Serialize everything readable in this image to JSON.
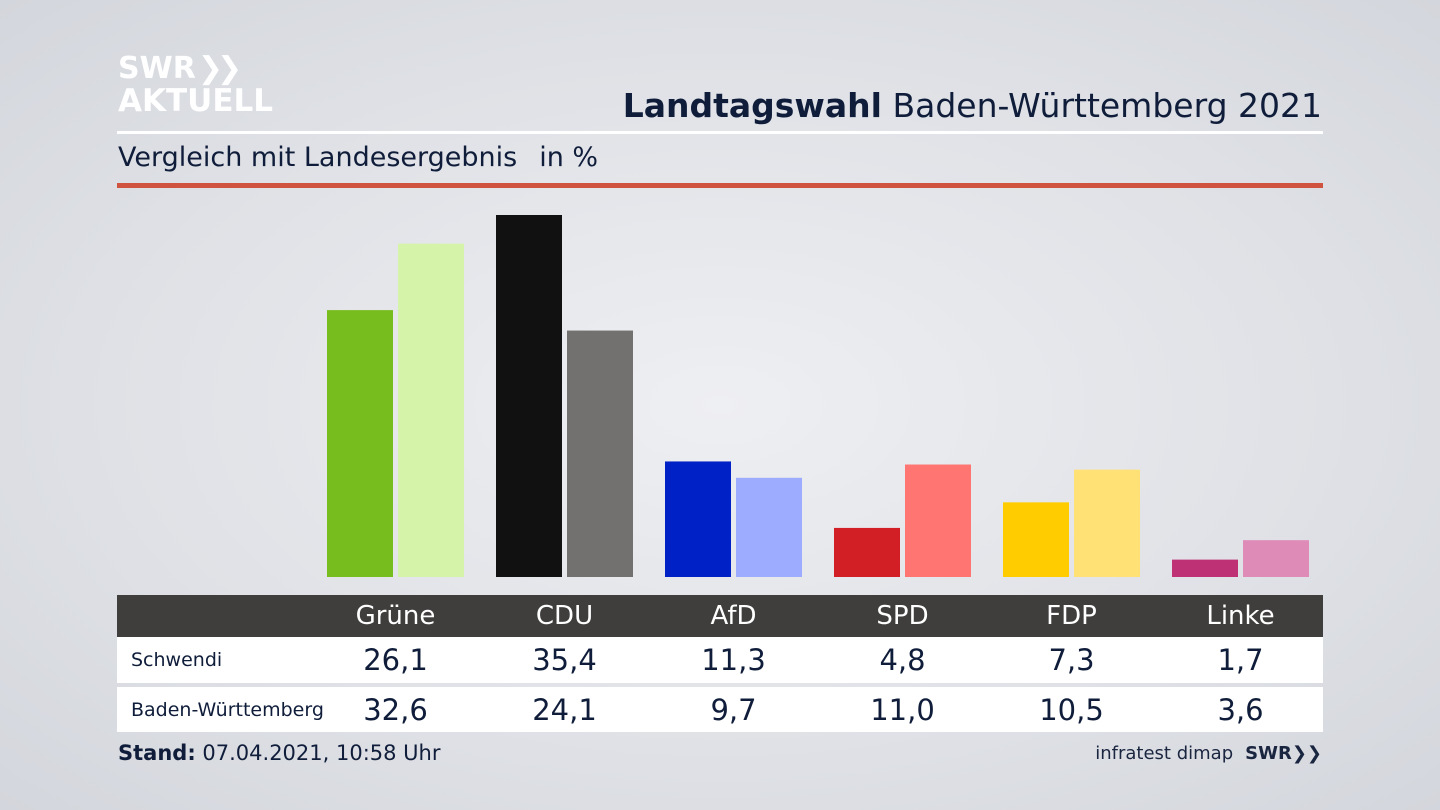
{
  "logo": {
    "line1": "SWR",
    "chevrons": "❯❯",
    "line2": "AKTUELL"
  },
  "header": {
    "title_bold": "Landtagswahl",
    "title_rest": " Baden-Württemberg 2021"
  },
  "subtitle": {
    "text": "Vergleich mit Landesergebnis",
    "unit": "in %"
  },
  "chart_data": {
    "type": "bar",
    "title": "Landtagswahl Baden-Württemberg 2021",
    "subtitle": "Vergleich mit Landesergebnis in %",
    "categories": [
      "Grüne",
      "CDU",
      "AfD",
      "SPD",
      "FDP",
      "Linke"
    ],
    "series": [
      {
        "name": "Schwendi",
        "values": [
          26.1,
          35.4,
          11.3,
          4.8,
          7.3,
          1.7
        ],
        "display": [
          "26,1",
          "35,4",
          "11,3",
          "4,8",
          "7,3",
          "1,7"
        ]
      },
      {
        "name": "Baden-Württemberg",
        "values": [
          32.6,
          24.1,
          9.7,
          11.0,
          10.5,
          3.6
        ],
        "display": [
          "32,6",
          "24,1",
          "9,7",
          "11,0",
          "10,5",
          "3,6"
        ]
      }
    ],
    "colors": {
      "Schwendi": [
        "#77bd1d",
        "#111111",
        "#0021c6",
        "#d21f25",
        "#ffcc00",
        "#be3174"
      ],
      "Baden-Württemberg": [
        "#d5f3a9",
        "#727170",
        "#9dacff",
        "#ff7571",
        "#ffe176",
        "#de8bb8"
      ]
    },
    "ylim": [
      0,
      35.4
    ],
    "grid": false,
    "legend": "table-below"
  },
  "footer": {
    "stand_label": "Stand:",
    "stand_value": " 07.04.2021, 10:58 Uhr",
    "source": "infratest dimap",
    "brand": "SWR",
    "brand_chevrons": "❯❯"
  }
}
